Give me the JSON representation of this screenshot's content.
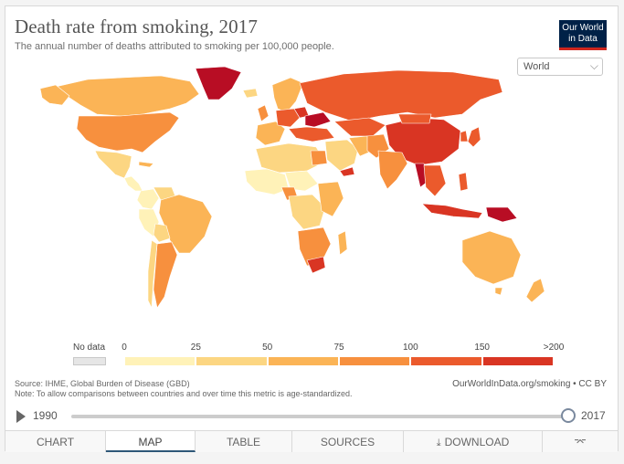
{
  "header": {
    "title": "Death rate from smoking, 2017",
    "subtitle": "The annual number of deaths attributed to smoking per 100,000 people.",
    "logo_line1": "Our World",
    "logo_line2": "in Data"
  },
  "region_select": {
    "value": "World",
    "options": [
      "World"
    ]
  },
  "legend": {
    "nodata_label": "No data",
    "ticks": [
      "0",
      "25",
      "50",
      "75",
      "100",
      "150",
      ">200"
    ],
    "colors": [
      "#fff2b8",
      "#fcd682",
      "#fbb456",
      "#f7903e",
      "#eb5a2c",
      "#d93523",
      "#b80d24"
    ],
    "nodata_color": "#e6e6e6"
  },
  "footer": {
    "source_line1": "Source: IHME, Global Burden of Disease (GBD)",
    "source_line2": "Note: To allow comparisons between countries and over time this metric is age-standardized.",
    "license": "OurWorldInData.org/smoking • CC BY"
  },
  "timeline": {
    "start_year": "1990",
    "end_year": "2017",
    "selected_year": 2017
  },
  "tabs": [
    {
      "label": "CHART",
      "active": false
    },
    {
      "label": "MAP",
      "active": true
    },
    {
      "label": "TABLE",
      "active": false
    },
    {
      "label": "SOURCES",
      "active": false
    },
    {
      "label": "DOWNLOAD",
      "active": false,
      "icon": "download-icon"
    },
    {
      "label": "",
      "active": false,
      "icon": "share-icon"
    }
  ]
}
